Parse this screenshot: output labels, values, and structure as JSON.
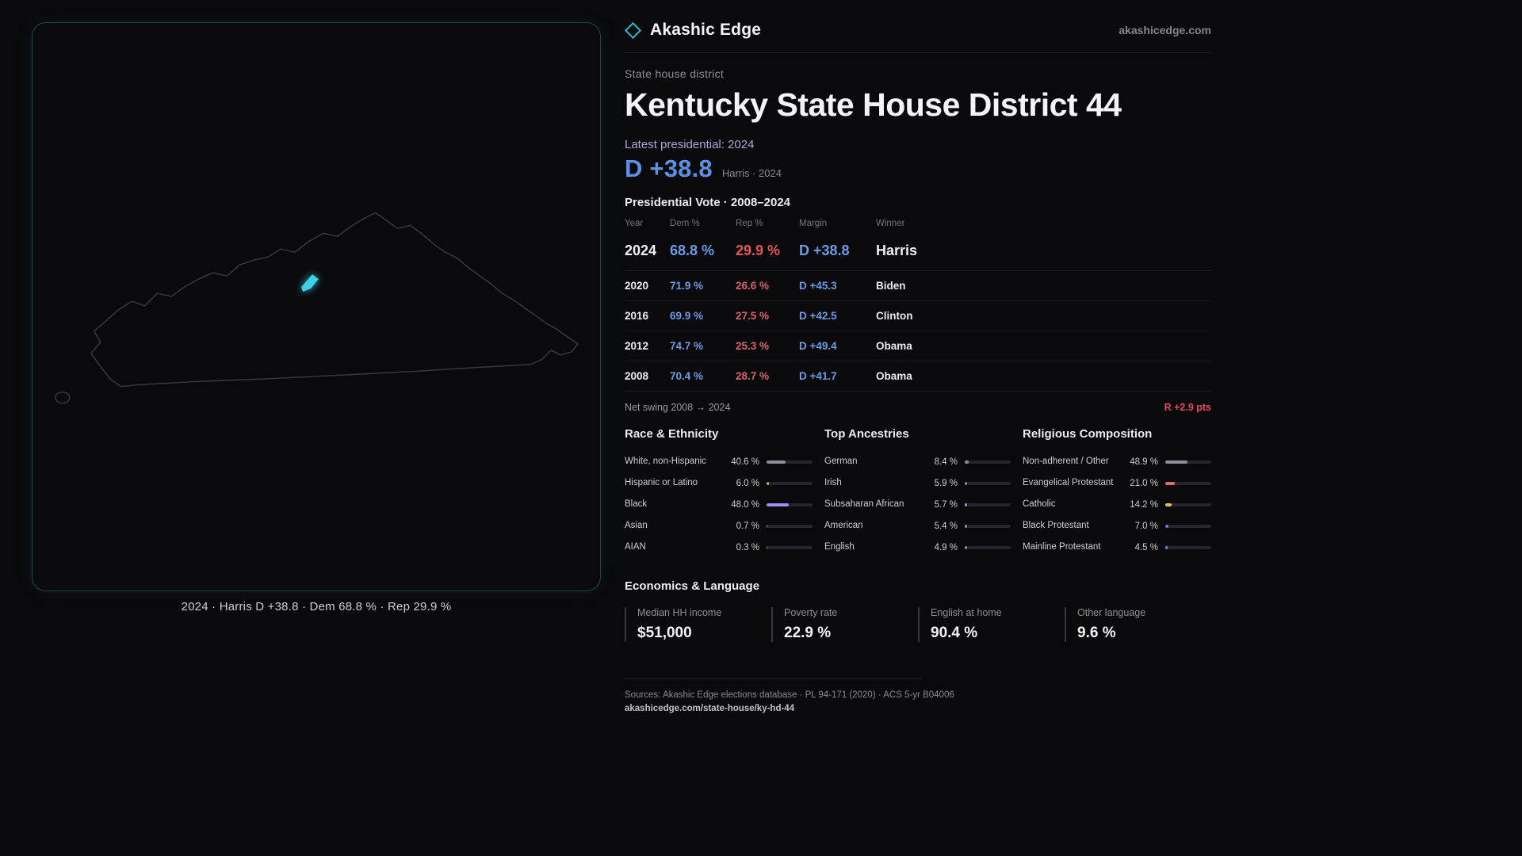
{
  "brand": {
    "name": "Akashic Edge",
    "domain": "akashicedge.com"
  },
  "colors": {
    "dem": "#6b9ce8",
    "rep": "#e25c66",
    "swing_red": "#e0505e",
    "accent_teal": "#2fb3c8",
    "district": "#3fd0e8"
  },
  "map": {
    "caption": "2024 · Harris D +38.8 · Dem 68.8 % · Rep 29.9 %"
  },
  "header": {
    "kicker": "State house district",
    "title": "Kentucky State House District 44",
    "latest_label": "Latest presidential: 2024",
    "margin_big": "D +38.8",
    "margin_sub": "Harris · 2024"
  },
  "swing": {
    "label": "Net swing 2008 → 2024",
    "value": "R +2.9 pts"
  },
  "economics": {
    "title": "Economics & Language",
    "stats": [
      {
        "label": "Median HH income",
        "value": "$51,000"
      },
      {
        "label": "Poverty rate",
        "value": "22.9 %"
      },
      {
        "label": "English at home",
        "value": "90.4 %"
      },
      {
        "label": "Other language",
        "value": "9.6 %"
      }
    ]
  },
  "footer": {
    "sources": "Sources: Akashic Edge elections database · PL 94-171 (2020) · ACS 5-yr B04006",
    "permalink": "akashicedge.com/state-house/ky-hd-44"
  },
  "chart_data": [
    {
      "type": "table",
      "title": "Presidential Vote · 2008–2024",
      "columns": [
        "Year",
        "Dem %",
        "Rep %",
        "Margin",
        "Winner"
      ],
      "rows": [
        {
          "year": "2024",
          "dem": "68.8 %",
          "rep": "29.9 %",
          "margin": "D +38.8",
          "winner": "Harris"
        },
        {
          "year": "2020",
          "dem": "71.9 %",
          "rep": "26.6 %",
          "margin": "D +45.3",
          "winner": "Biden"
        },
        {
          "year": "2016",
          "dem": "69.9 %",
          "rep": "27.5 %",
          "margin": "D +42.5",
          "winner": "Clinton"
        },
        {
          "year": "2012",
          "dem": "74.7 %",
          "rep": "25.3 %",
          "margin": "D +49.4",
          "winner": "Obama"
        },
        {
          "year": "2008",
          "dem": "70.4 %",
          "rep": "28.7 %",
          "margin": "D +41.7",
          "winner": "Obama"
        }
      ]
    },
    {
      "type": "bar",
      "title": "Race & Ethnicity",
      "unit": "%",
      "xlim": [
        0,
        100
      ],
      "rows": [
        {
          "label": "White, non-Hispanic",
          "value": "40.6 %",
          "pct": 40.6,
          "color": "#8f8f98"
        },
        {
          "label": "Hispanic or Latino",
          "value": "6.0 %",
          "pct": 6.0,
          "color": "#e0a03c"
        },
        {
          "label": "Black",
          "value": "48.0 %",
          "pct": 48.0,
          "color": "#9d8df0"
        },
        {
          "label": "Asian",
          "value": "0.7 %",
          "pct": 0.7,
          "color": "#8f8f98"
        },
        {
          "label": "AIAN",
          "value": "0.3 %",
          "pct": 0.3,
          "color": "#8f8f98"
        }
      ]
    },
    {
      "type": "bar",
      "title": "Top Ancestries",
      "unit": "%",
      "xlim": [
        0,
        100
      ],
      "rows": [
        {
          "label": "German",
          "value": "8.4 %",
          "pct": 8.4,
          "color": "#8f8f98"
        },
        {
          "label": "Irish",
          "value": "5.9 %",
          "pct": 5.9,
          "color": "#8f8f98"
        },
        {
          "label": "Subsaharan African",
          "value": "5.7 %",
          "pct": 5.7,
          "color": "#9d8df0"
        },
        {
          "label": "American",
          "value": "5.4 %",
          "pct": 5.4,
          "color": "#8f8f98"
        },
        {
          "label": "English",
          "value": "4.9 %",
          "pct": 4.9,
          "color": "#8f8f98"
        }
      ]
    },
    {
      "type": "bar",
      "title": "Religious Composition",
      "unit": "%",
      "xlim": [
        0,
        100
      ],
      "rows": [
        {
          "label": "Non-adherent / Other",
          "value": "48.9 %",
          "pct": 48.9,
          "color": "#8f8f98"
        },
        {
          "label": "Evangelical Protestant",
          "value": "21.0 %",
          "pct": 21.0,
          "color": "#e06c74"
        },
        {
          "label": "Catholic",
          "value": "14.2 %",
          "pct": 14.2,
          "color": "#e8c23c"
        },
        {
          "label": "Black Protestant",
          "value": "7.0 %",
          "pct": 7.0,
          "color": "#7a6ff0"
        },
        {
          "label": "Mainline Protestant",
          "value": "4.5 %",
          "pct": 4.5,
          "color": "#5c8fe0"
        }
      ]
    }
  ]
}
